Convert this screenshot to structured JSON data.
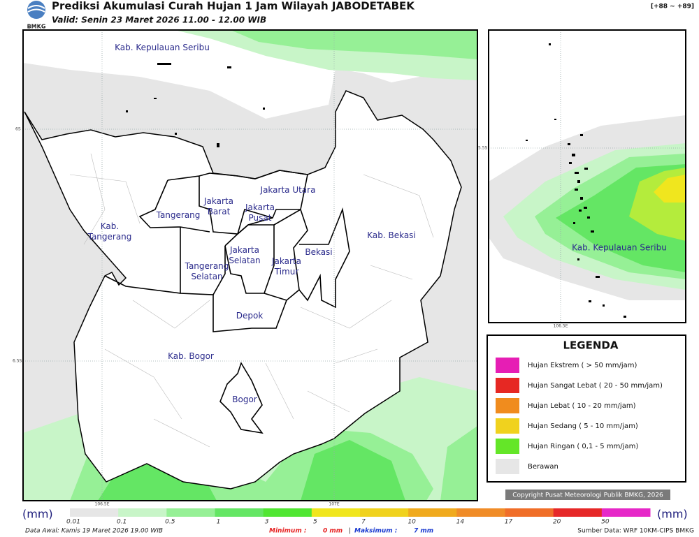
{
  "header": {
    "title": "Prediksi Akumulasi Curah Hujan 1 Jam Wilayah JABODETABEK",
    "valid": "Valid: Senin 23 Maret 2026 11.00 - 12.00 WIB",
    "logo": "BMKG",
    "range": "[+88 ~ +89]"
  },
  "map": {
    "labels": [
      {
        "lines": [
          "Kab. Kepulauan Seribu"
        ]
      },
      {
        "lines": [
          "Jakarta Utara"
        ]
      },
      {
        "lines": [
          "Jakarta",
          "Barat"
        ]
      },
      {
        "lines": [
          "Jakarta",
          "Pusat"
        ]
      },
      {
        "lines": [
          "Tangerang"
        ]
      },
      {
        "lines": [
          "Kab.",
          "Tangerang"
        ]
      },
      {
        "lines": [
          "Jakarta",
          "Selatan"
        ]
      },
      {
        "lines": [
          "Jakarta",
          "Timur"
        ]
      },
      {
        "lines": [
          "Bekasi"
        ]
      },
      {
        "lines": [
          "Kab. Bekasi"
        ]
      },
      {
        "lines": [
          "Tangerang",
          "Selatan"
        ]
      },
      {
        "lines": [
          "Depok"
        ]
      },
      {
        "lines": [
          "Kab. Bogor"
        ]
      },
      {
        "lines": [
          "Bogor"
        ]
      }
    ],
    "lat_labels": [
      "6S",
      "6.5S"
    ],
    "lon_labels": [
      "106.5E",
      "107E"
    ]
  },
  "inset": {
    "label": "Kab. Kepulauan Seribu",
    "lat_label": "5.5S",
    "lon_label": "106.5E"
  },
  "legend": {
    "title": "LEGENDA",
    "items": [
      {
        "label": "Hujan Ekstrem ( > 50 mm/jam)",
        "color": "#e61eb4"
      },
      {
        "label": "Hujan Sangat Lebat ( 20 - 50 mm/jam)",
        "color": "#e62823"
      },
      {
        "label": "Hujan Lebat ( 10 - 20 mm/jam)",
        "color": "#f08c1e"
      },
      {
        "label": "Hujan Sedang ( 5 - 10 mm/jam)",
        "color": "#f0d21e"
      },
      {
        "label": "Hujan Ringan ( 0,1 - 5 mm/jam)",
        "color": "#64e628"
      },
      {
        "label": "Berawan",
        "color": "#e6e6e6"
      }
    ]
  },
  "copyright": "Copyright Pusat Meteorologi Publik BMKG, 2026",
  "colorbar": {
    "unit": "(mm)",
    "ticks": [
      "0.01",
      "0.1",
      "0.5",
      "1",
      "3",
      "5",
      "7",
      "10",
      "14",
      "17",
      "20",
      "50"
    ],
    "colors": [
      "#e6e6e6",
      "#c8f5c8",
      "#96f096",
      "#64e664",
      "#50e632",
      "#f0e61e",
      "#f0d21e",
      "#f0aa1e",
      "#f08c28",
      "#f06e28",
      "#e62828",
      "#e628c8"
    ]
  },
  "footer": {
    "data_awal": "Data Awal: Kamis 19 Maret 2026 19.00 WIB",
    "min_label": "Minimum :",
    "min_value": "0 mm",
    "separator": "|",
    "max_label": "Maksimum :",
    "max_value": "7 mm",
    "source": "Sumber Data: WRF 10KM-CIPS BMKG"
  }
}
